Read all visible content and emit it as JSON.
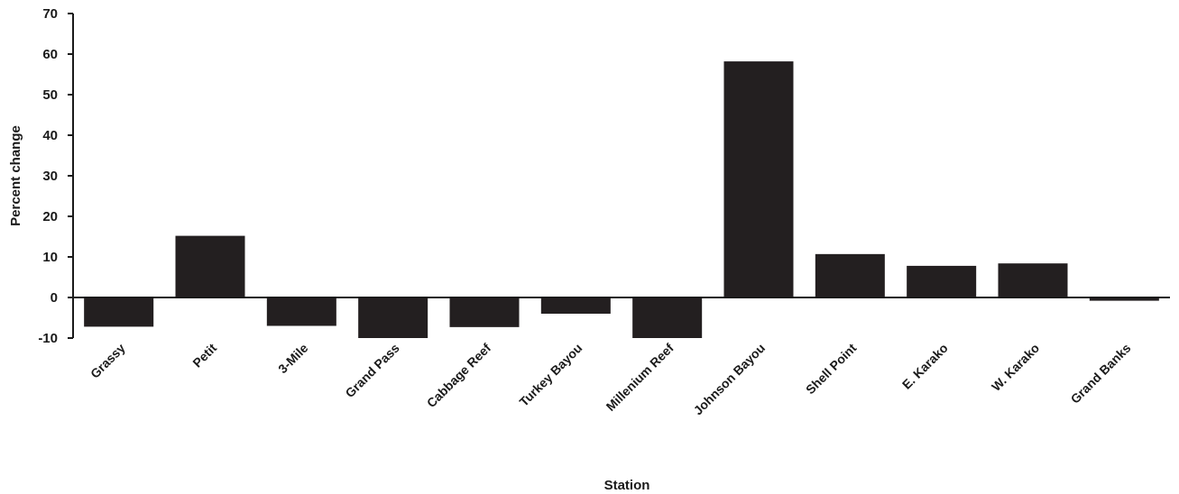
{
  "chart_data": {
    "type": "bar",
    "title": "",
    "xlabel": "Station",
    "ylabel": "Percent change",
    "categories": [
      "Grassy",
      "Petit",
      "3-Mile",
      "Grand Pass",
      "Cabbage Reef",
      "Turkey Bayou",
      "Millenium Reef",
      "Johnson Bayou",
      "Shell Point",
      "E. Karako",
      "W. Karako",
      "Grand Banks"
    ],
    "values": [
      -7.2,
      15.2,
      -7.0,
      -10.0,
      -7.3,
      -4.0,
      -10.0,
      58.2,
      10.7,
      7.8,
      8.4,
      -0.8
    ],
    "ylim": [
      -10,
      70
    ],
    "yticks": [
      -10,
      0,
      10,
      20,
      30,
      40,
      50,
      60,
      70
    ],
    "grid": false,
    "legend": "none",
    "bar_color": "#231f20"
  }
}
